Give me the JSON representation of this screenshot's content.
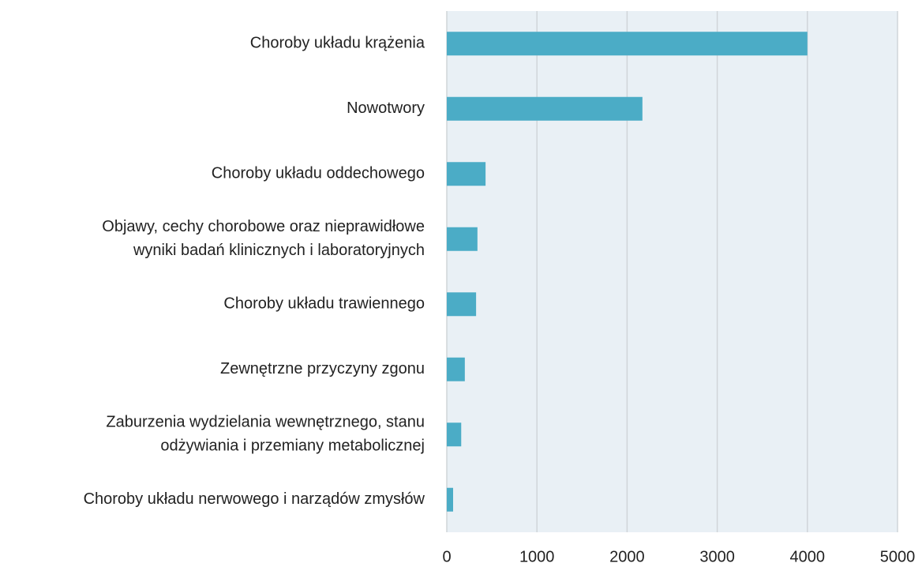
{
  "chart_data": {
    "type": "hbar",
    "categories": [
      [
        "Choroby układu krążenia"
      ],
      [
        "Nowotwory"
      ],
      [
        "Choroby układu oddechowego"
      ],
      [
        "Objawy, cechy chorobowe oraz nieprawidłowe",
        "wyniki badań klinicznych i laboratoryjnych"
      ],
      [
        "Choroby układu trawiennego"
      ],
      [
        "Zewnętrzne przyczyny zgonu"
      ],
      [
        "Zaburzenia wydzielania wewnętrznego, stanu",
        "odżywiania i przemiany metabolicznej"
      ],
      [
        "Choroby układu nerwowego i narządów zmysłów"
      ]
    ],
    "values": [
      4000,
      2170,
      430,
      340,
      325,
      200,
      160,
      70
    ],
    "color": "#4bacc6",
    "xlim": [
      0,
      5000
    ],
    "xticks": [
      0,
      1000,
      2000,
      3000,
      4000,
      5000
    ],
    "grid": true
  }
}
